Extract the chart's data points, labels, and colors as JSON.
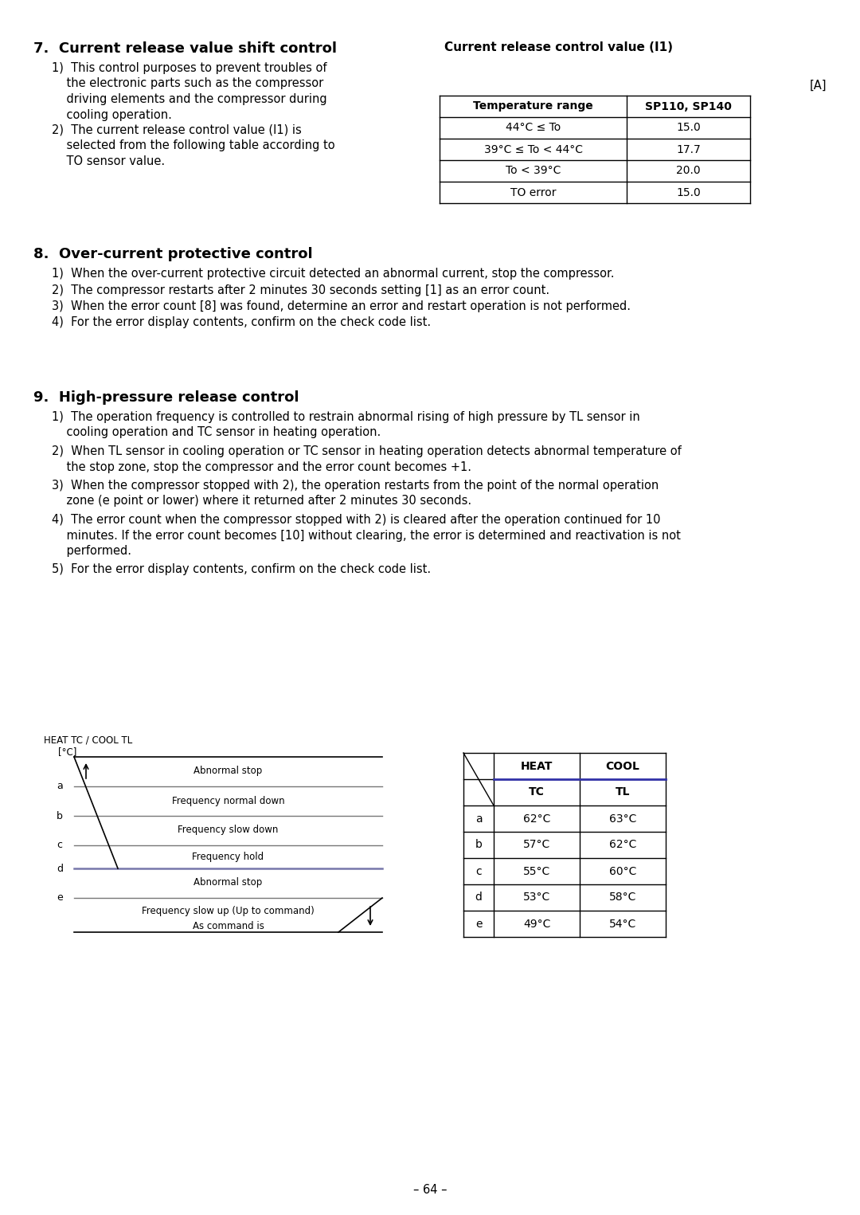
{
  "page_number": "– 64 –",
  "section7": {
    "title": "7.  Current release value shift control",
    "right_title": "Current release control value (I1)",
    "unit_label": "[A]",
    "table_headers": [
      "Temperature range",
      "SP110, SP140"
    ],
    "table_rows": [
      [
        "44°C ≤ To",
        "15.0"
      ],
      [
        "39°C ≤ To < 44°C",
        "17.7"
      ],
      [
        "To < 39°C",
        "20.0"
      ],
      [
        "TO error",
        "15.0"
      ]
    ]
  },
  "section8": {
    "title": "8.  Over-current protective control",
    "items": [
      "1)  When the over-current protective circuit detected an abnormal current, stop the compressor.",
      "2)  The compressor restarts after 2 minutes 30 seconds setting [1] as an error count.",
      "3)  When the error count [8] was found, determine an error and restart operation is not performed.",
      "4)  For the error display contents, confirm on the check code list."
    ]
  },
  "section9": {
    "title": "9.  High-pressure release control",
    "table2_rows": [
      [
        "a",
        "62°C",
        "63°C"
      ],
      [
        "b",
        "57°C",
        "62°C"
      ],
      [
        "c",
        "55°C",
        "60°C"
      ],
      [
        "d",
        "53°C",
        "58°C"
      ],
      [
        "e",
        "49°C",
        "54°C"
      ]
    ]
  }
}
